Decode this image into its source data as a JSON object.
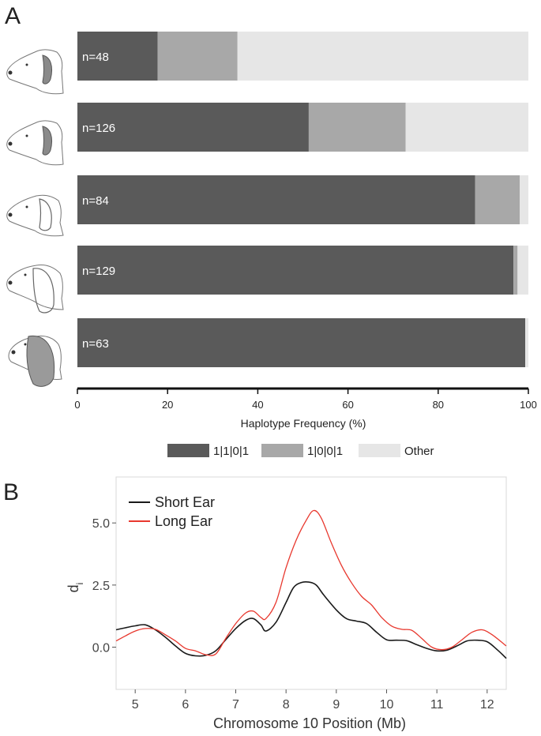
{
  "panel_labels": [
    "A",
    "B"
  ],
  "chart_data": [
    {
      "type": "bar",
      "orientation": "horizontal",
      "stacked": true,
      "categories": [
        "n=48",
        "n=126",
        "n=84",
        "n=129",
        "n=63"
      ],
      "series": [
        {
          "name": "1|1|0|1",
          "color": "#5a5a5a",
          "values": [
            17.8,
            51.3,
            88.2,
            96.7,
            99.3
          ]
        },
        {
          "name": "1|0|0|1",
          "color": "#a8a8a8",
          "values": [
            17.7,
            21.5,
            9.9,
            0.9,
            0.0
          ]
        },
        {
          "name": "Other",
          "color": "#e6e6e6",
          "values": [
            64.5,
            27.2,
            1.9,
            2.4,
            0.7
          ]
        }
      ],
      "xlabel": "Haplotype Frequency (%)",
      "xlim": [
        0,
        100
      ],
      "xticks": [
        "0",
        "20",
        "40",
        "60",
        "80",
        "100"
      ],
      "legend_position": "bottom",
      "row_icons": [
        "short-ear-dog-head-icon",
        "short-ear-dog-head-icon",
        "medium-ear-dog-head-icon",
        "long-ear-dog-head-icon",
        "long-ear-dog-head-icon"
      ]
    },
    {
      "type": "line",
      "xlabel": "Chromosome 10 Position (Mb)",
      "ylabel": "d",
      "ylabel_subscript": "i",
      "xlim": [
        4.62,
        12.38
      ],
      "ylim": [
        -1.7,
        6.85
      ],
      "xticks": [
        "5",
        "6",
        "7",
        "8",
        "9",
        "10",
        "11",
        "12"
      ],
      "yticks": [
        "0.0",
        "2.5",
        "5.0"
      ],
      "legend_position": "top-left",
      "grid": false,
      "series": [
        {
          "name": "Short Ear",
          "color": "#1a1a1a",
          "x": [
            4.62,
            4.8,
            5.0,
            5.2,
            5.4,
            5.6,
            5.8,
            6.0,
            6.2,
            6.4,
            6.6,
            6.8,
            7.0,
            7.2,
            7.35,
            7.5,
            7.6,
            7.8,
            8.0,
            8.15,
            8.3,
            8.45,
            8.6,
            8.75,
            9.0,
            9.2,
            9.4,
            9.6,
            9.8,
            10.0,
            10.2,
            10.4,
            10.6,
            10.8,
            11.0,
            11.2,
            11.4,
            11.6,
            11.8,
            12.0,
            12.2,
            12.38
          ],
          "y": [
            0.7,
            0.78,
            0.86,
            0.9,
            0.7,
            0.4,
            0.05,
            -0.25,
            -0.35,
            -0.33,
            -0.15,
            0.3,
            0.75,
            1.08,
            1.15,
            0.9,
            0.65,
            1.0,
            1.8,
            2.4,
            2.6,
            2.62,
            2.5,
            2.1,
            1.5,
            1.15,
            1.05,
            0.95,
            0.6,
            0.3,
            0.28,
            0.26,
            0.1,
            -0.05,
            -0.15,
            -0.12,
            0.05,
            0.25,
            0.28,
            0.22,
            -0.1,
            -0.45
          ]
        },
        {
          "name": "Long Ear",
          "color": "#e8382e",
          "x": [
            4.62,
            4.8,
            5.0,
            5.2,
            5.4,
            5.6,
            5.8,
            6.0,
            6.2,
            6.4,
            6.6,
            6.8,
            7.0,
            7.2,
            7.35,
            7.5,
            7.6,
            7.8,
            8.0,
            8.2,
            8.4,
            8.55,
            8.7,
            8.9,
            9.1,
            9.3,
            9.5,
            9.7,
            9.9,
            10.1,
            10.3,
            10.5,
            10.7,
            10.9,
            11.1,
            11.3,
            11.5,
            11.7,
            11.9,
            12.1,
            12.38
          ],
          "y": [
            0.25,
            0.45,
            0.65,
            0.75,
            0.72,
            0.5,
            0.25,
            -0.05,
            -0.15,
            -0.3,
            -0.28,
            0.35,
            0.95,
            1.38,
            1.45,
            1.2,
            1.15,
            1.8,
            3.2,
            4.3,
            5.1,
            5.5,
            5.2,
            4.2,
            3.3,
            2.6,
            2.05,
            1.7,
            1.2,
            0.85,
            0.72,
            0.68,
            0.35,
            0.0,
            -0.1,
            0.0,
            0.3,
            0.6,
            0.7,
            0.5,
            0.05
          ]
        }
      ]
    }
  ]
}
